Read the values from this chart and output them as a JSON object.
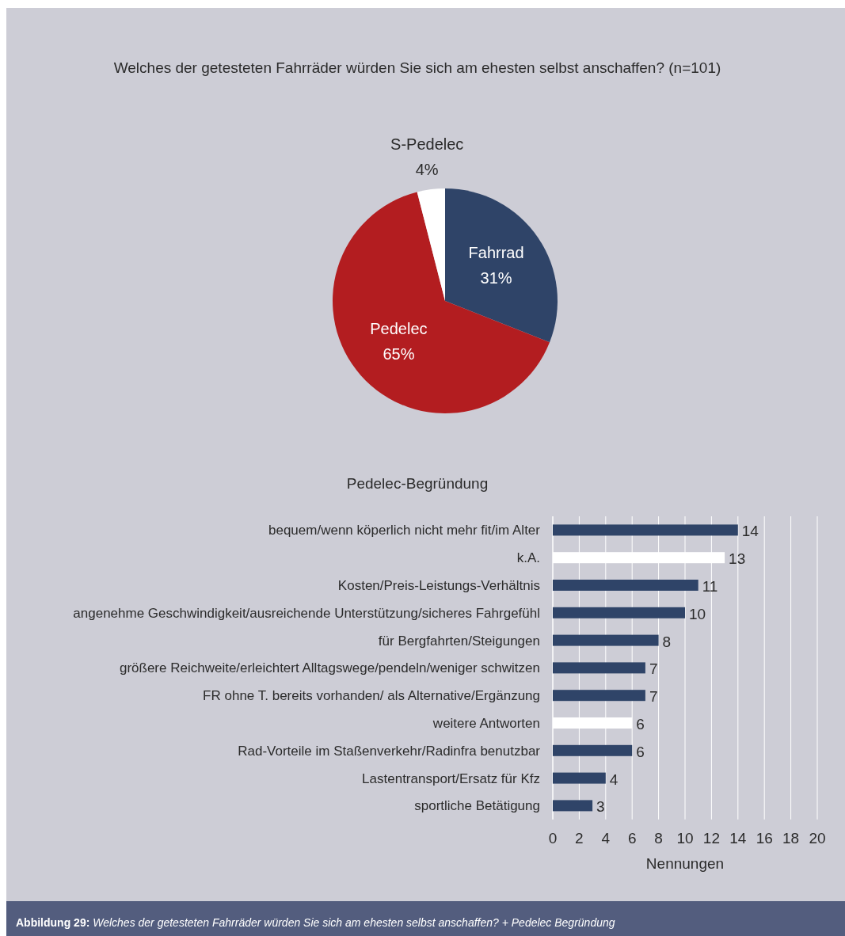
{
  "chart_data": [
    {
      "type": "pie",
      "title": "Welches der getesteten Fahrräder würden Sie sich am ehesten selbst anschaffen? (n=101)",
      "categories": [
        "Fahrrad",
        "Pedelec",
        "S-Pedelec"
      ],
      "values": [
        31,
        65,
        4
      ],
      "colors": [
        "#2f4468",
        "#b31d20",
        "#ffffff"
      ],
      "value_labels": [
        "31%",
        "65%",
        "4%"
      ]
    },
    {
      "type": "bar",
      "orientation": "horizontal",
      "title": "Pedelec-Begründung",
      "xlabel": "Nennungen",
      "categories": [
        "bequem/wenn köperlich nicht mehr fit/im Alter",
        "k.A.",
        "Kosten/Preis-Leistungs-Verhältnis",
        "angenehme Geschwindigkeit/ausreichende Unterstützung/sicheres Fahrgefühl",
        "für Bergfahrten/Steigungen",
        "größere Reichweite/erleichtert Alltagswege/pendeln/weniger schwitzen",
        "FR ohne T. bereits vorhanden/ als Alternative/Ergänzung",
        "weitere Antworten",
        "Rad-Vorteile im Staßenverkehr/Radinfra benutzbar",
        "Lastentransport/Ersatz für Kfz",
        "sportliche Betätigung"
      ],
      "values": [
        14,
        13,
        11,
        10,
        8,
        7,
        7,
        6,
        6,
        4,
        3
      ],
      "colors": [
        "#2f4468",
        "#ffffff",
        "#2f4468",
        "#2f4468",
        "#2f4468",
        "#2f4468",
        "#2f4468",
        "#ffffff",
        "#2f4468",
        "#2f4468",
        "#2f4468"
      ],
      "xlim": [
        0,
        20
      ],
      "xticks": [
        0,
        2,
        4,
        6,
        8,
        10,
        12,
        14,
        16,
        18,
        20
      ],
      "grid": "x",
      "data_labels": true,
      "annotations": [
        "Abbildung 29: Welches der getesteten Fahrräder würden Sie sich am ehesten selbst anschaffen? + Pedelec Begründung"
      ]
    }
  ]
}
